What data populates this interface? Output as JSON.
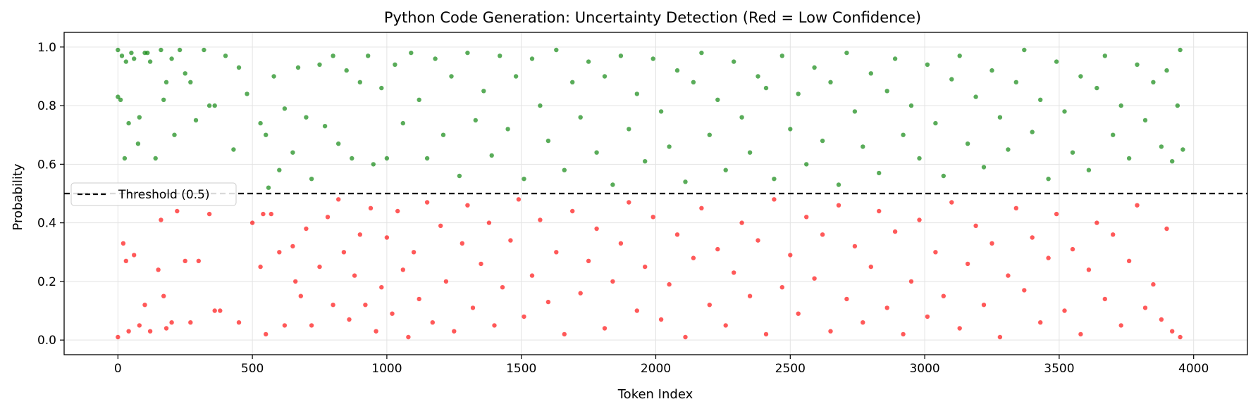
{
  "chart_data": {
    "type": "scatter",
    "title": "Python Code Generation: Uncertainty Detection (Red = Low Confidence)",
    "xlabel": "Token Index",
    "ylabel": "Probability",
    "xlim": [
      -200,
      4200
    ],
    "ylim": [
      -0.05,
      1.05
    ],
    "xticks": [
      0,
      500,
      1000,
      1500,
      2000,
      2500,
      3000,
      3500,
      4000
    ],
    "yticks": [
      0.0,
      0.2,
      0.4,
      0.6,
      0.8,
      1.0
    ],
    "grid": true,
    "threshold": {
      "value": 0.5,
      "label": "Threshold (0.5)",
      "style": "dashed",
      "color": "#000000"
    },
    "legend": {
      "position": "center-left",
      "entries": [
        "Threshold (0.5)"
      ]
    },
    "colors": {
      "high_confidence": "#008000",
      "low_confidence": "#ff0000"
    },
    "series": [
      {
        "color": "#008000",
        "points": [
          [
            0,
            0.99
          ],
          [
            0,
            0.83
          ],
          [
            10,
            0.82
          ],
          [
            15,
            0.97
          ],
          [
            25,
            0.62
          ],
          [
            30,
            0.95
          ],
          [
            40,
            0.74
          ],
          [
            50,
            0.98
          ],
          [
            60,
            0.96
          ],
          [
            75,
            0.67
          ],
          [
            80,
            0.76
          ],
          [
            100,
            0.98
          ],
          [
            110,
            0.98
          ],
          [
            120,
            0.95
          ],
          [
            140,
            0.62
          ],
          [
            160,
            0.99
          ],
          [
            170,
            0.82
          ],
          [
            180,
            0.88
          ],
          [
            200,
            0.96
          ],
          [
            210,
            0.7
          ],
          [
            230,
            0.99
          ],
          [
            250,
            0.91
          ],
          [
            270,
            0.88
          ],
          [
            290,
            0.75
          ],
          [
            320,
            0.99
          ],
          [
            340,
            0.8
          ],
          [
            360,
            0.8
          ],
          [
            400,
            0.97
          ],
          [
            430,
            0.65
          ],
          [
            450,
            0.93
          ],
          [
            480,
            0.84
          ],
          [
            530,
            0.74
          ],
          [
            550,
            0.7
          ],
          [
            560,
            0.52
          ],
          [
            580,
            0.9
          ],
          [
            600,
            0.58
          ],
          [
            620,
            0.79
          ],
          [
            650,
            0.64
          ],
          [
            670,
            0.93
          ],
          [
            700,
            0.76
          ],
          [
            720,
            0.55
          ],
          [
            750,
            0.94
          ],
          [
            770,
            0.73
          ],
          [
            800,
            0.97
          ],
          [
            820,
            0.67
          ],
          [
            850,
            0.92
          ],
          [
            870,
            0.62
          ],
          [
            900,
            0.88
          ],
          [
            930,
            0.97
          ],
          [
            950,
            0.6
          ],
          [
            980,
            0.86
          ],
          [
            1000,
            0.62
          ],
          [
            1030,
            0.94
          ],
          [
            1060,
            0.74
          ],
          [
            1090,
            0.98
          ],
          [
            1120,
            0.82
          ],
          [
            1150,
            0.62
          ],
          [
            1180,
            0.96
          ],
          [
            1210,
            0.7
          ],
          [
            1240,
            0.9
          ],
          [
            1270,
            0.56
          ],
          [
            1300,
            0.98
          ],
          [
            1330,
            0.75
          ],
          [
            1360,
            0.85
          ],
          [
            1390,
            0.63
          ],
          [
            1420,
            0.97
          ],
          [
            1450,
            0.72
          ],
          [
            1480,
            0.9
          ],
          [
            1510,
            0.55
          ],
          [
            1540,
            0.96
          ],
          [
            1570,
            0.8
          ],
          [
            1600,
            0.68
          ],
          [
            1630,
            0.99
          ],
          [
            1660,
            0.58
          ],
          [
            1690,
            0.88
          ],
          [
            1720,
            0.76
          ],
          [
            1750,
            0.95
          ],
          [
            1780,
            0.64
          ],
          [
            1810,
            0.9
          ],
          [
            1840,
            0.53
          ],
          [
            1870,
            0.97
          ],
          [
            1900,
            0.72
          ],
          [
            1930,
            0.84
          ],
          [
            1960,
            0.61
          ],
          [
            1990,
            0.96
          ],
          [
            2020,
            0.78
          ],
          [
            2050,
            0.66
          ],
          [
            2080,
            0.92
          ],
          [
            2110,
            0.54
          ],
          [
            2140,
            0.88
          ],
          [
            2170,
            0.98
          ],
          [
            2200,
            0.7
          ],
          [
            2230,
            0.82
          ],
          [
            2260,
            0.58
          ],
          [
            2290,
            0.95
          ],
          [
            2320,
            0.76
          ],
          [
            2350,
            0.64
          ],
          [
            2380,
            0.9
          ],
          [
            2410,
            0.86
          ],
          [
            2440,
            0.55
          ],
          [
            2470,
            0.97
          ],
          [
            2500,
            0.72
          ],
          [
            2530,
            0.84
          ],
          [
            2560,
            0.6
          ],
          [
            2590,
            0.93
          ],
          [
            2620,
            0.68
          ],
          [
            2650,
            0.88
          ],
          [
            2680,
            0.53
          ],
          [
            2710,
            0.98
          ],
          [
            2740,
            0.78
          ],
          [
            2770,
            0.66
          ],
          [
            2800,
            0.91
          ],
          [
            2830,
            0.57
          ],
          [
            2860,
            0.85
          ],
          [
            2890,
            0.96
          ],
          [
            2920,
            0.7
          ],
          [
            2950,
            0.8
          ],
          [
            2980,
            0.62
          ],
          [
            3010,
            0.94
          ],
          [
            3040,
            0.74
          ],
          [
            3070,
            0.56
          ],
          [
            3100,
            0.89
          ],
          [
            3130,
            0.97
          ],
          [
            3160,
            0.67
          ],
          [
            3190,
            0.83
          ],
          [
            3220,
            0.59
          ],
          [
            3250,
            0.92
          ],
          [
            3280,
            0.76
          ],
          [
            3310,
            0.65
          ],
          [
            3340,
            0.88
          ],
          [
            3370,
            0.99
          ],
          [
            3400,
            0.71
          ],
          [
            3430,
            0.82
          ],
          [
            3460,
            0.55
          ],
          [
            3490,
            0.95
          ],
          [
            3520,
            0.78
          ],
          [
            3550,
            0.64
          ],
          [
            3580,
            0.9
          ],
          [
            3610,
            0.58
          ],
          [
            3640,
            0.86
          ],
          [
            3670,
            0.97
          ],
          [
            3700,
            0.7
          ],
          [
            3730,
            0.8
          ],
          [
            3760,
            0.62
          ],
          [
            3790,
            0.94
          ],
          [
            3820,
            0.75
          ],
          [
            3850,
            0.88
          ],
          [
            3880,
            0.66
          ],
          [
            3900,
            0.92
          ],
          [
            3920,
            0.61
          ],
          [
            3940,
            0.8
          ],
          [
            3950,
            0.99
          ],
          [
            3960,
            0.65
          ]
        ]
      },
      {
        "color": "#ff0000",
        "points": [
          [
            0,
            0.01
          ],
          [
            20,
            0.33
          ],
          [
            30,
            0.27
          ],
          [
            40,
            0.03
          ],
          [
            60,
            0.29
          ],
          [
            80,
            0.05
          ],
          [
            100,
            0.12
          ],
          [
            120,
            0.03
          ],
          [
            150,
            0.24
          ],
          [
            160,
            0.41
          ],
          [
            170,
            0.15
          ],
          [
            180,
            0.04
          ],
          [
            200,
            0.06
          ],
          [
            220,
            0.44
          ],
          [
            250,
            0.27
          ],
          [
            270,
            0.06
          ],
          [
            300,
            0.27
          ],
          [
            340,
            0.43
          ],
          [
            360,
            0.1
          ],
          [
            380,
            0.1
          ],
          [
            450,
            0.06
          ],
          [
            500,
            0.4
          ],
          [
            530,
            0.25
          ],
          [
            540,
            0.43
          ],
          [
            550,
            0.02
          ],
          [
            570,
            0.43
          ],
          [
            600,
            0.3
          ],
          [
            620,
            0.05
          ],
          [
            650,
            0.32
          ],
          [
            660,
            0.2
          ],
          [
            680,
            0.15
          ],
          [
            700,
            0.38
          ],
          [
            720,
            0.05
          ],
          [
            750,
            0.25
          ],
          [
            780,
            0.42
          ],
          [
            800,
            0.12
          ],
          [
            820,
            0.48
          ],
          [
            840,
            0.3
          ],
          [
            860,
            0.07
          ],
          [
            880,
            0.22
          ],
          [
            900,
            0.36
          ],
          [
            920,
            0.12
          ],
          [
            940,
            0.45
          ],
          [
            960,
            0.03
          ],
          [
            980,
            0.18
          ],
          [
            1000,
            0.35
          ],
          [
            1020,
            0.09
          ],
          [
            1040,
            0.44
          ],
          [
            1060,
            0.24
          ],
          [
            1080,
            0.01
          ],
          [
            1100,
            0.3
          ],
          [
            1120,
            0.14
          ],
          [
            1150,
            0.47
          ],
          [
            1170,
            0.06
          ],
          [
            1200,
            0.39
          ],
          [
            1220,
            0.2
          ],
          [
            1250,
            0.03
          ],
          [
            1280,
            0.33
          ],
          [
            1300,
            0.46
          ],
          [
            1320,
            0.11
          ],
          [
            1350,
            0.26
          ],
          [
            1380,
            0.4
          ],
          [
            1400,
            0.05
          ],
          [
            1430,
            0.18
          ],
          [
            1460,
            0.34
          ],
          [
            1490,
            0.48
          ],
          [
            1510,
            0.08
          ],
          [
            1540,
            0.22
          ],
          [
            1570,
            0.41
          ],
          [
            1600,
            0.13
          ],
          [
            1630,
            0.3
          ],
          [
            1660,
            0.02
          ],
          [
            1690,
            0.44
          ],
          [
            1720,
            0.16
          ],
          [
            1750,
            0.27
          ],
          [
            1780,
            0.38
          ],
          [
            1810,
            0.04
          ],
          [
            1840,
            0.2
          ],
          [
            1870,
            0.33
          ],
          [
            1900,
            0.47
          ],
          [
            1930,
            0.1
          ],
          [
            1960,
            0.25
          ],
          [
            1990,
            0.42
          ],
          [
            2020,
            0.07
          ],
          [
            2050,
            0.19
          ],
          [
            2080,
            0.36
          ],
          [
            2110,
            0.01
          ],
          [
            2140,
            0.28
          ],
          [
            2170,
            0.45
          ],
          [
            2200,
            0.12
          ],
          [
            2230,
            0.31
          ],
          [
            2260,
            0.05
          ],
          [
            2290,
            0.23
          ],
          [
            2320,
            0.4
          ],
          [
            2350,
            0.15
          ],
          [
            2380,
            0.34
          ],
          [
            2410,
            0.02
          ],
          [
            2440,
            0.48
          ],
          [
            2470,
            0.18
          ],
          [
            2500,
            0.29
          ],
          [
            2530,
            0.09
          ],
          [
            2560,
            0.42
          ],
          [
            2590,
            0.21
          ],
          [
            2620,
            0.36
          ],
          [
            2650,
            0.03
          ],
          [
            2680,
            0.46
          ],
          [
            2710,
            0.14
          ],
          [
            2740,
            0.32
          ],
          [
            2770,
            0.06
          ],
          [
            2800,
            0.25
          ],
          [
            2830,
            0.44
          ],
          [
            2860,
            0.11
          ],
          [
            2890,
            0.37
          ],
          [
            2920,
            0.02
          ],
          [
            2950,
            0.2
          ],
          [
            2980,
            0.41
          ],
          [
            3010,
            0.08
          ],
          [
            3040,
            0.3
          ],
          [
            3070,
            0.15
          ],
          [
            3100,
            0.47
          ],
          [
            3130,
            0.04
          ],
          [
            3160,
            0.26
          ],
          [
            3190,
            0.39
          ],
          [
            3220,
            0.12
          ],
          [
            3250,
            0.33
          ],
          [
            3280,
            0.01
          ],
          [
            3310,
            0.22
          ],
          [
            3340,
            0.45
          ],
          [
            3370,
            0.17
          ],
          [
            3400,
            0.35
          ],
          [
            3430,
            0.06
          ],
          [
            3460,
            0.28
          ],
          [
            3490,
            0.43
          ],
          [
            3520,
            0.1
          ],
          [
            3550,
            0.31
          ],
          [
            3580,
            0.02
          ],
          [
            3610,
            0.24
          ],
          [
            3640,
            0.4
          ],
          [
            3670,
            0.14
          ],
          [
            3700,
            0.36
          ],
          [
            3730,
            0.05
          ],
          [
            3760,
            0.27
          ],
          [
            3790,
            0.46
          ],
          [
            3820,
            0.11
          ],
          [
            3850,
            0.19
          ],
          [
            3880,
            0.07
          ],
          [
            3900,
            0.38
          ],
          [
            3920,
            0.03
          ],
          [
            3950,
            0.01
          ]
        ]
      }
    ]
  }
}
